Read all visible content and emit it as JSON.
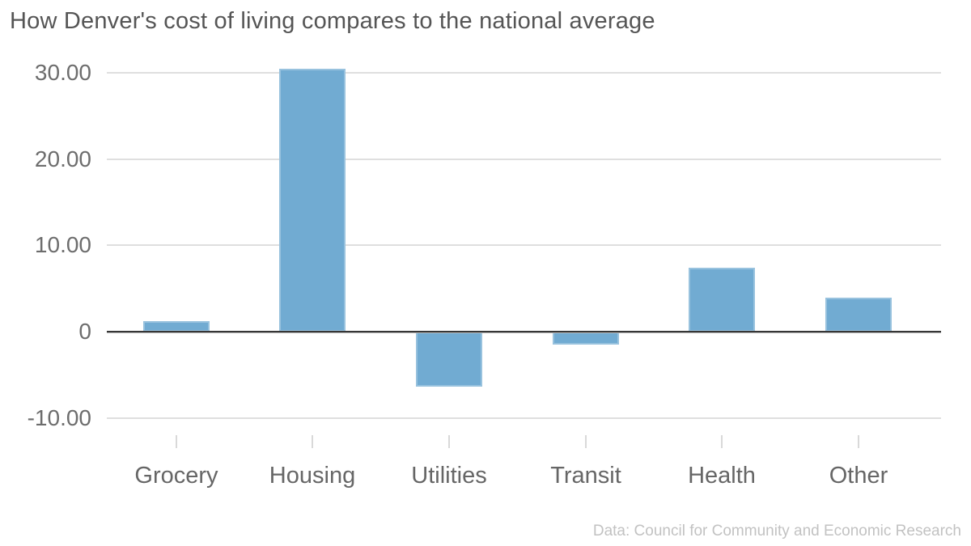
{
  "chart_data": {
    "type": "bar",
    "title": "How Denver's cost of living compares to the national average",
    "categories": [
      "Grocery",
      "Housing",
      "Utilities",
      "Transit",
      "Health",
      "Other"
    ],
    "values": [
      1.2,
      30.4,
      -6.4,
      -1.5,
      7.4,
      3.9
    ],
    "xlabel": "",
    "ylabel": "",
    "ylim": [
      -10,
      31
    ],
    "yticks": [
      {
        "value": 30,
        "label": "30.00"
      },
      {
        "value": 20,
        "label": "20.00"
      },
      {
        "value": 10,
        "label": "10.00"
      },
      {
        "value": 0,
        "label": "0"
      },
      {
        "value": -10,
        "label": "-10.00"
      }
    ],
    "grid": "horizontal-only",
    "legend": "none"
  },
  "footer": {
    "credit": "Data: Council for Community and Economic Research"
  },
  "colors": {
    "bar_fill": "#71abd2",
    "gridline": "#dfdfdf",
    "zero_axis": "#363636",
    "xtick": "#d9d9d9",
    "title_text": "#555555",
    "ytick_text": "#6d6d6d",
    "category_text": "#666666",
    "credit_text": "#c2c2c2",
    "background": "#ffffff"
  }
}
